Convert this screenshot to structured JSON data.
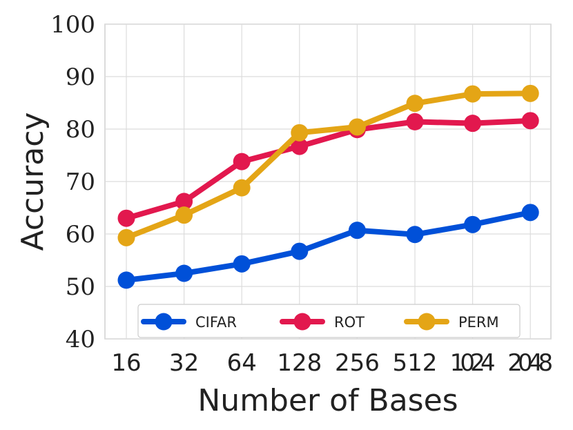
{
  "chart_data": {
    "type": "line",
    "title": "",
    "xlabel": "Number of Bases",
    "ylabel": "Accuracy",
    "categories": [
      "16",
      "32",
      "64",
      "128",
      "256",
      "512",
      "1024",
      "2048"
    ],
    "ylim": [
      40,
      100
    ],
    "yticks": [
      40,
      50,
      60,
      70,
      80,
      90,
      100
    ],
    "grid": true,
    "legend_position": "bottom",
    "series": [
      {
        "name": "CIFAR",
        "color": "#0050d8",
        "values": [
          51.2,
          52.5,
          54.3,
          56.7,
          60.7,
          59.9,
          61.8,
          64.1
        ]
      },
      {
        "name": "ROT",
        "color": "#e2184e",
        "values": [
          63.0,
          66.2,
          73.8,
          76.7,
          79.9,
          81.4,
          81.1,
          81.6
        ]
      },
      {
        "name": "PERM",
        "color": "#e4a516",
        "values": [
          59.3,
          63.6,
          68.8,
          79.3,
          80.4,
          84.9,
          86.7,
          86.8
        ]
      }
    ]
  }
}
